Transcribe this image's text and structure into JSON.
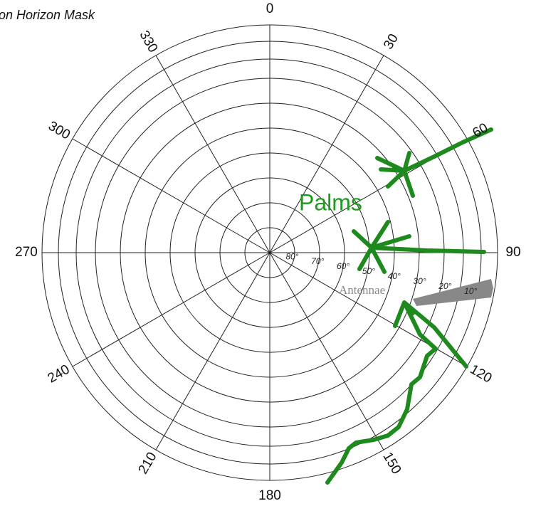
{
  "title": "on Horizon Mask",
  "azimuth_labels": [
    "0",
    "30",
    "60",
    "90",
    "120",
    "150",
    "180",
    "210",
    "240",
    "270",
    "300",
    "330"
  ],
  "elevation_labels": [
    "80°",
    "70°",
    "60°",
    "50°",
    "40°",
    "30°",
    "20°",
    "10°"
  ],
  "annotations": {
    "palms": "Palms",
    "antennae": "Antennae"
  }
}
